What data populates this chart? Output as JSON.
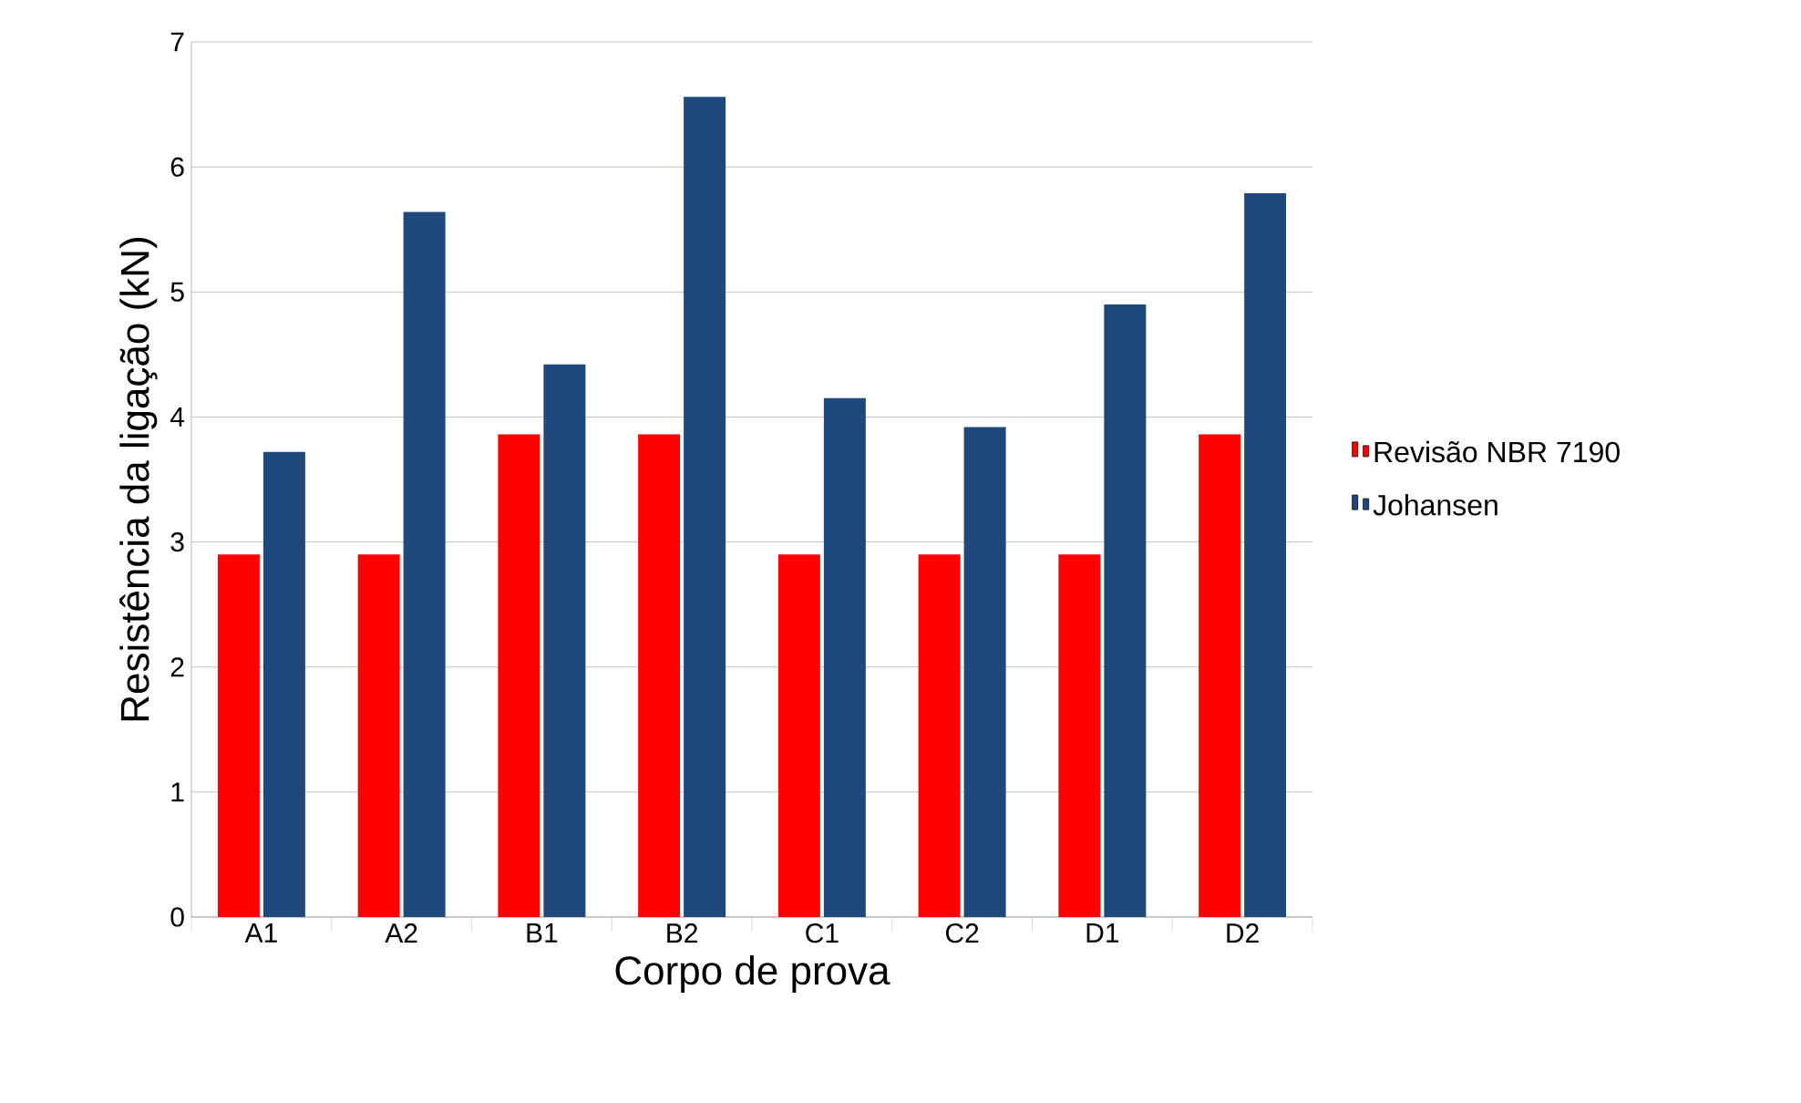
{
  "chart_data": {
    "type": "bar",
    "xlabel": "Corpo de prova",
    "ylabel": "Resistência da ligação (kN)",
    "categories": [
      "A1",
      "A2",
      "B1",
      "B2",
      "C1",
      "C2",
      "D1",
      "D2"
    ],
    "series": [
      {
        "name": "Revisão NBR 7190",
        "color": "#ff0000",
        "values": [
          2.9,
          2.9,
          3.86,
          3.86,
          2.9,
          2.9,
          2.9,
          3.86
        ]
      },
      {
        "name": "Johansen",
        "color": "#1f497d",
        "values": [
          3.72,
          5.64,
          4.42,
          6.56,
          4.15,
          3.92,
          4.9,
          5.79
        ]
      }
    ],
    "ylim": [
      0,
      7
    ],
    "yticks": [
      0,
      1,
      2,
      3,
      4,
      5,
      6,
      7
    ],
    "grid": "y",
    "legend": "right"
  }
}
